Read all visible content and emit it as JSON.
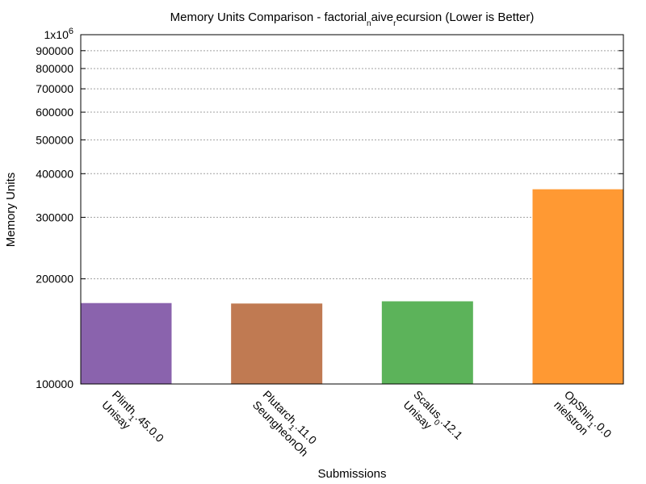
{
  "chart_data": {
    "type": "bar",
    "title": "Memory Units Comparison - factorial_naive_recursion (Lower is Better)",
    "title_parts": [
      {
        "text": "Memory Units Comparison - factorial",
        "sub": false
      },
      {
        "text": "n",
        "sub": true
      },
      {
        "text": "aive",
        "sub": false
      },
      {
        "text": "r",
        "sub": true
      },
      {
        "text": "ecursion (Lower is Better)",
        "sub": false
      }
    ],
    "xlabel": "Submissions",
    "ylabel": "Memory Units",
    "yscale": "log",
    "ylim": [
      100000,
      1000000
    ],
    "y_ticks": [
      {
        "value": 100000,
        "label": "100000"
      },
      {
        "value": 200000,
        "label": "200000"
      },
      {
        "value": 300000,
        "label": "300000"
      },
      {
        "value": 400000,
        "label": "400000"
      },
      {
        "value": 500000,
        "label": "500000"
      },
      {
        "value": 600000,
        "label": "600000"
      },
      {
        "value": 700000,
        "label": "700000"
      },
      {
        "value": 800000,
        "label": "800000"
      },
      {
        "value": 900000,
        "label": "900000"
      },
      {
        "value": 1000000,
        "label": "1x10",
        "sup": "6"
      }
    ],
    "grid": true,
    "categories": [
      {
        "name": "Plinth_1.45.0.0 Unisay",
        "line1": [
          {
            "text": "Plinth",
            "sub": false
          },
          {
            "text": "1",
            "sub": true
          },
          {
            "text": ".45.0.0",
            "sub": false
          }
        ],
        "line2": "Unisay",
        "value": 170000,
        "color": "#8a63ad"
      },
      {
        "name": "Plutarch_1.11.0 SeungheonOh",
        "line1": [
          {
            "text": "Plutarch",
            "sub": false
          },
          {
            "text": "1",
            "sub": true
          },
          {
            "text": ".11.0",
            "sub": false
          }
        ],
        "line2": "SeungheonOh",
        "value": 169500,
        "color": "#c07a52"
      },
      {
        "name": "Scalus_0.12.1 Unisay",
        "line1": [
          {
            "text": "Scalus",
            "sub": false
          },
          {
            "text": "0",
            "sub": true
          },
          {
            "text": ".12.1",
            "sub": false
          }
        ],
        "line2": "Unisay",
        "value": 172000,
        "color": "#5cb35a"
      },
      {
        "name": "OpShin_1.0.0 nielstron",
        "line1": [
          {
            "text": "OpShin",
            "sub": false
          },
          {
            "text": "1",
            "sub": true
          },
          {
            "text": ".0.0",
            "sub": false
          }
        ],
        "line2": "nielstron",
        "value": 360000,
        "color": "#ff9933"
      }
    ]
  }
}
